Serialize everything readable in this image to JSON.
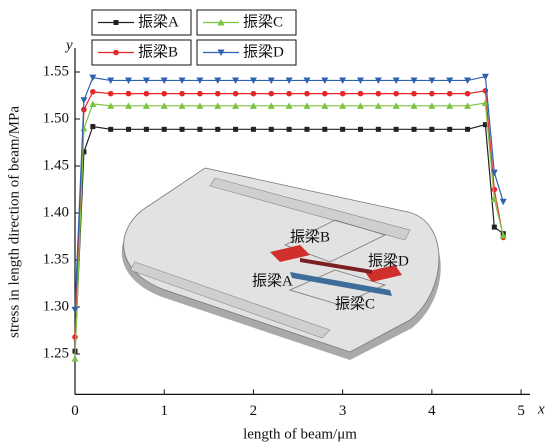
{
  "chart_data": {
    "type": "line",
    "x_label": "length of beam/μm",
    "y_label": "stress in length direction of beam/MPa",
    "x_axis_letter": "x",
    "y_axis_letter": "y",
    "x": [
      0,
      0.1,
      0.2,
      0.4,
      0.6,
      0.8,
      1.0,
      1.2,
      1.4,
      1.6,
      1.8,
      2.0,
      2.2,
      2.4,
      2.6,
      2.8,
      3.0,
      3.2,
      3.4,
      3.6,
      3.8,
      4.0,
      4.2,
      4.4,
      4.6,
      4.7,
      4.8
    ],
    "series": [
      {
        "name": "振梁A",
        "color": "#222222",
        "marker": "square",
        "values": [
          1.253,
          1.465,
          1.492,
          1.489,
          1.489,
          1.489,
          1.489,
          1.489,
          1.489,
          1.489,
          1.489,
          1.489,
          1.489,
          1.489,
          1.489,
          1.489,
          1.489,
          1.489,
          1.489,
          1.489,
          1.489,
          1.489,
          1.489,
          1.489,
          1.494,
          1.385,
          1.378
        ]
      },
      {
        "name": "振梁B",
        "color": "#e8262a",
        "marker": "circle",
        "values": [
          1.268,
          1.51,
          1.529,
          1.527,
          1.527,
          1.527,
          1.527,
          1.527,
          1.527,
          1.527,
          1.527,
          1.527,
          1.527,
          1.527,
          1.527,
          1.527,
          1.527,
          1.527,
          1.527,
          1.527,
          1.527,
          1.527,
          1.527,
          1.527,
          1.53,
          1.425,
          1.374
        ]
      },
      {
        "name": "振梁C",
        "color": "#7dc242",
        "marker": "triangle-up",
        "values": [
          1.245,
          1.49,
          1.516,
          1.514,
          1.514,
          1.514,
          1.514,
          1.514,
          1.514,
          1.514,
          1.514,
          1.514,
          1.514,
          1.514,
          1.514,
          1.514,
          1.514,
          1.514,
          1.514,
          1.514,
          1.514,
          1.514,
          1.514,
          1.514,
          1.517,
          1.415,
          1.376
        ]
      },
      {
        "name": "振梁D",
        "color": "#2e62b0",
        "marker": "triangle-down",
        "values": [
          1.297,
          1.52,
          1.544,
          1.541,
          1.541,
          1.541,
          1.541,
          1.541,
          1.541,
          1.541,
          1.541,
          1.541,
          1.541,
          1.541,
          1.541,
          1.541,
          1.541,
          1.541,
          1.541,
          1.541,
          1.541,
          1.541,
          1.541,
          1.541,
          1.545,
          1.443,
          1.412
        ]
      }
    ],
    "xlim": [
      0,
      5.1
    ],
    "xticks": [
      0,
      1,
      2,
      3,
      4,
      5
    ],
    "ylim": [
      1.207,
      1.575
    ],
    "yticks": [
      1.25,
      {
        "value": 1.3,
        "label": "1.30"
      },
      1.35,
      {
        "value": 1.4,
        "label": "1.40"
      },
      1.45,
      {
        "value": 1.5,
        "label": "1.50"
      },
      1.55
    ],
    "grid": false,
    "annotations": [
      {
        "text": "振梁B",
        "color": "#c8302c"
      },
      {
        "text": "振梁A",
        "color": "#c8302c"
      },
      {
        "text": "振梁D",
        "color": "#5b86b0"
      },
      {
        "text": "振梁C",
        "color": "#5b86b0"
      }
    ]
  }
}
